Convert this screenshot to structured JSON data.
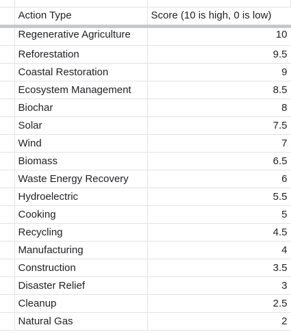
{
  "table": {
    "columns": [
      "Action Type",
      "Score (10 is high, 0 is low)"
    ],
    "rows": [
      {
        "action": "Regenerative Agriculture",
        "score": "10"
      },
      {
        "action": "Reforestation",
        "score": "9.5"
      },
      {
        "action": "Coastal Restoration",
        "score": "9"
      },
      {
        "action": "Ecosystem Management",
        "score": "8.5"
      },
      {
        "action": "Biochar",
        "score": "8"
      },
      {
        "action": "Solar",
        "score": "7.5"
      },
      {
        "action": "Wind",
        "score": "7"
      },
      {
        "action": "Biomass",
        "score": "6.5"
      },
      {
        "action": "Waste Energy Recovery",
        "score": "6"
      },
      {
        "action": "Hydroelectric",
        "score": "5.5"
      },
      {
        "action": "Cooking",
        "score": "5"
      },
      {
        "action": "Recycling",
        "score": "4.5"
      },
      {
        "action": "Manufacturing",
        "score": "4"
      },
      {
        "action": "Construction",
        "score": "3.5"
      },
      {
        "action": "Disaster Relief",
        "score": "3"
      },
      {
        "action": "Cleanup",
        "score": "2.5"
      },
      {
        "action": "Natural Gas",
        "score": "2"
      }
    ]
  }
}
